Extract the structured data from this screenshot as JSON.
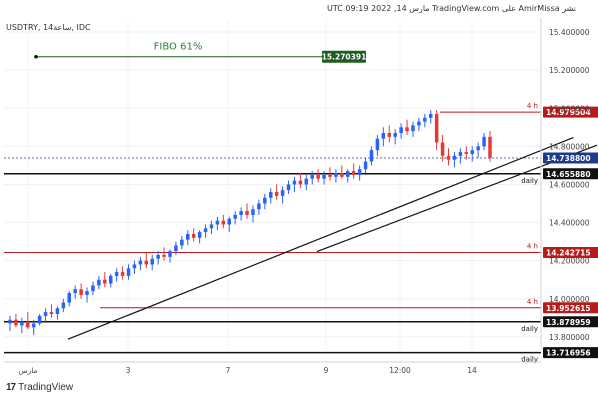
{
  "header": {
    "publish_line": "نشر AmirMissa على TradingView.com مارس 14, 2022 09:19 UTC",
    "symbol_line": "USDTRY, 14ساعة, IDC"
  },
  "footer": {
    "brand": "TradingView",
    "logo_mark": "17"
  },
  "colors": {
    "candle_up": "#2962ff",
    "candle_down": "#e53935",
    "level_red": "#b71c1c",
    "level_black": "#111111",
    "fibo_green": "#1b5e20",
    "fibo_text": "#2e7d32",
    "current_price_tag": "#1e3a8a",
    "axis_text": "#444444"
  },
  "chart_data": {
    "type": "candlestick",
    "symbol": "USDTRY",
    "timeframe": "14ساعة",
    "source": "IDC",
    "price_axis": {
      "range": [
        13.7,
        15.5
      ],
      "ticks": [
        "15.400000",
        "15.200000",
        "15.000000",
        "14.800000",
        "14.600000",
        "14.400000",
        "14.200000",
        "14.000000",
        "13.800000"
      ]
    },
    "time_axis": {
      "ticks": [
        "مارس",
        "3",
        "7",
        "9",
        "12:00",
        "14"
      ]
    },
    "levels": [
      {
        "price": 14.979504,
        "label": "14.979504",
        "tag": "4 h",
        "color": "red"
      },
      {
        "price": 14.65588,
        "label": "14.655880",
        "tag": "daily",
        "color": "black"
      },
      {
        "price": 14.242715,
        "label": "14.242715",
        "tag": "4 h",
        "color": "red"
      },
      {
        "price": 13.952615,
        "label": "13.952615",
        "tag": "4 h",
        "color": "red"
      },
      {
        "price": 13.878959,
        "label": "13.878959",
        "tag": "daily",
        "color": "black"
      },
      {
        "price": 13.716956,
        "label": "13.716956",
        "tag": "daily",
        "color": "black"
      }
    ],
    "current_price": {
      "price": 14.7388,
      "label": "14.738800"
    },
    "fibo": {
      "label": "FIBO 61%",
      "price": 15.270391,
      "price_label": "15.270391"
    },
    "trendlines": [
      {
        "from": {
          "time_index": 0,
          "price": 13.84
        },
        "to": {
          "time_index": 90,
          "price": 14.82
        }
      },
      {
        "from": {
          "time_index": 42,
          "price": 14.3
        },
        "to": {
          "time_index": 94,
          "price": 14.78
        }
      }
    ],
    "candles": [
      {
        "o": 13.87,
        "h": 13.91,
        "l": 13.83,
        "c": 13.89
      },
      {
        "o": 13.89,
        "h": 13.92,
        "l": 13.85,
        "c": 13.86
      },
      {
        "o": 13.86,
        "h": 13.9,
        "l": 13.82,
        "c": 13.88
      },
      {
        "o": 13.88,
        "h": 13.93,
        "l": 13.84,
        "c": 13.85
      },
      {
        "o": 13.85,
        "h": 13.89,
        "l": 13.81,
        "c": 13.87
      },
      {
        "o": 13.87,
        "h": 13.92,
        "l": 13.86,
        "c": 13.91
      },
      {
        "o": 13.91,
        "h": 13.95,
        "l": 13.88,
        "c": 13.93
      },
      {
        "o": 13.93,
        "h": 13.97,
        "l": 13.9,
        "c": 13.92
      },
      {
        "o": 13.92,
        "h": 13.96,
        "l": 13.89,
        "c": 13.95
      },
      {
        "o": 13.95,
        "h": 14.0,
        "l": 13.93,
        "c": 13.98
      },
      {
        "o": 13.98,
        "h": 14.04,
        "l": 13.96,
        "c": 14.03
      },
      {
        "o": 14.03,
        "h": 14.07,
        "l": 14.0,
        "c": 14.05
      },
      {
        "o": 14.05,
        "h": 14.08,
        "l": 14.0,
        "c": 14.02
      },
      {
        "o": 14.02,
        "h": 14.06,
        "l": 13.98,
        "c": 14.04
      },
      {
        "o": 14.04,
        "h": 14.09,
        "l": 14.02,
        "c": 14.07
      },
      {
        "o": 14.07,
        "h": 14.12,
        "l": 14.05,
        "c": 14.1
      },
      {
        "o": 14.1,
        "h": 14.14,
        "l": 14.06,
        "c": 14.08
      },
      {
        "o": 14.08,
        "h": 14.13,
        "l": 14.06,
        "c": 14.12
      },
      {
        "o": 14.12,
        "h": 14.16,
        "l": 14.09,
        "c": 14.14
      },
      {
        "o": 14.14,
        "h": 14.17,
        "l": 14.1,
        "c": 14.12
      },
      {
        "o": 14.12,
        "h": 14.18,
        "l": 14.1,
        "c": 14.16
      },
      {
        "o": 14.16,
        "h": 14.2,
        "l": 14.13,
        "c": 14.18
      },
      {
        "o": 14.18,
        "h": 14.22,
        "l": 14.15,
        "c": 14.2
      },
      {
        "o": 14.2,
        "h": 14.24,
        "l": 14.16,
        "c": 14.18
      },
      {
        "o": 14.18,
        "h": 14.23,
        "l": 14.15,
        "c": 14.21
      },
      {
        "o": 14.21,
        "h": 14.25,
        "l": 14.18,
        "c": 14.23
      },
      {
        "o": 14.23,
        "h": 14.27,
        "l": 14.2,
        "c": 14.22
      },
      {
        "o": 14.22,
        "h": 14.26,
        "l": 14.19,
        "c": 14.25
      },
      {
        "o": 14.25,
        "h": 14.3,
        "l": 14.23,
        "c": 14.28
      },
      {
        "o": 14.28,
        "h": 14.33,
        "l": 14.26,
        "c": 14.31
      },
      {
        "o": 14.31,
        "h": 14.36,
        "l": 14.28,
        "c": 14.34
      },
      {
        "o": 14.34,
        "h": 14.37,
        "l": 14.3,
        "c": 14.32
      },
      {
        "o": 14.32,
        "h": 14.36,
        "l": 14.29,
        "c": 14.35
      },
      {
        "o": 14.35,
        "h": 14.39,
        "l": 14.32,
        "c": 14.37
      },
      {
        "o": 14.37,
        "h": 14.41,
        "l": 14.34,
        "c": 14.39
      },
      {
        "o": 14.39,
        "h": 14.43,
        "l": 14.36,
        "c": 14.41
      },
      {
        "o": 14.41,
        "h": 14.44,
        "l": 14.37,
        "c": 14.39
      },
      {
        "o": 14.39,
        "h": 14.43,
        "l": 14.35,
        "c": 14.42
      },
      {
        "o": 14.42,
        "h": 14.46,
        "l": 14.39,
        "c": 14.44
      },
      {
        "o": 14.44,
        "h": 14.48,
        "l": 14.41,
        "c": 14.46
      },
      {
        "o": 14.46,
        "h": 14.5,
        "l": 14.42,
        "c": 14.44
      },
      {
        "o": 14.44,
        "h": 14.49,
        "l": 14.4,
        "c": 14.47
      },
      {
        "o": 14.47,
        "h": 14.52,
        "l": 14.44,
        "c": 14.5
      },
      {
        "o": 14.5,
        "h": 14.55,
        "l": 14.47,
        "c": 14.53
      },
      {
        "o": 14.53,
        "h": 14.58,
        "l": 14.5,
        "c": 14.56
      },
      {
        "o": 14.56,
        "h": 14.6,
        "l": 14.52,
        "c": 14.54
      },
      {
        "o": 14.54,
        "h": 14.59,
        "l": 14.5,
        "c": 14.57
      },
      {
        "o": 14.57,
        "h": 14.62,
        "l": 14.55,
        "c": 14.6
      },
      {
        "o": 14.6,
        "h": 14.64,
        "l": 14.56,
        "c": 14.62
      },
      {
        "o": 14.62,
        "h": 14.66,
        "l": 14.58,
        "c": 14.6
      },
      {
        "o": 14.6,
        "h": 14.65,
        "l": 14.57,
        "c": 14.63
      },
      {
        "o": 14.63,
        "h": 14.67,
        "l": 14.6,
        "c": 14.65
      },
      {
        "o": 14.65,
        "h": 14.68,
        "l": 14.61,
        "c": 14.63
      },
      {
        "o": 14.63,
        "h": 14.67,
        "l": 14.6,
        "c": 14.65
      },
      {
        "o": 14.65,
        "h": 14.69,
        "l": 14.62,
        "c": 14.64
      },
      {
        "o": 14.64,
        "h": 14.68,
        "l": 14.61,
        "c": 14.66
      },
      {
        "o": 14.66,
        "h": 14.7,
        "l": 14.63,
        "c": 14.64
      },
      {
        "o": 14.64,
        "h": 14.68,
        "l": 14.61,
        "c": 14.67
      },
      {
        "o": 14.67,
        "h": 14.71,
        "l": 14.63,
        "c": 14.65
      },
      {
        "o": 14.65,
        "h": 14.7,
        "l": 14.62,
        "c": 14.68
      },
      {
        "o": 14.68,
        "h": 14.74,
        "l": 14.66,
        "c": 14.72
      },
      {
        "o": 14.72,
        "h": 14.8,
        "l": 14.7,
        "c": 14.78
      },
      {
        "o": 14.78,
        "h": 14.86,
        "l": 14.75,
        "c": 14.84
      },
      {
        "o": 14.84,
        "h": 14.9,
        "l": 14.8,
        "c": 14.87
      },
      {
        "o": 14.87,
        "h": 14.91,
        "l": 14.82,
        "c": 14.85
      },
      {
        "o": 14.85,
        "h": 14.89,
        "l": 14.81,
        "c": 14.87
      },
      {
        "o": 14.87,
        "h": 14.92,
        "l": 14.84,
        "c": 14.9
      },
      {
        "o": 14.9,
        "h": 14.94,
        "l": 14.86,
        "c": 14.88
      },
      {
        "o": 14.88,
        "h": 14.93,
        "l": 14.85,
        "c": 14.91
      },
      {
        "o": 14.91,
        "h": 14.95,
        "l": 14.88,
        "c": 14.93
      },
      {
        "o": 14.93,
        "h": 14.97,
        "l": 14.9,
        "c": 14.95
      },
      {
        "o": 14.95,
        "h": 14.99,
        "l": 14.92,
        "c": 14.97
      },
      {
        "o": 14.97,
        "h": 14.99,
        "l": 14.78,
        "c": 14.82
      },
      {
        "o": 14.82,
        "h": 14.86,
        "l": 14.72,
        "c": 14.75
      },
      {
        "o": 14.75,
        "h": 14.79,
        "l": 14.7,
        "c": 14.73
      },
      {
        "o": 14.73,
        "h": 14.77,
        "l": 14.69,
        "c": 14.75
      },
      {
        "o": 14.75,
        "h": 14.79,
        "l": 14.71,
        "c": 14.77
      },
      {
        "o": 14.77,
        "h": 14.8,
        "l": 14.73,
        "c": 14.76
      },
      {
        "o": 14.76,
        "h": 14.8,
        "l": 14.72,
        "c": 14.78
      },
      {
        "o": 14.78,
        "h": 14.82,
        "l": 14.74,
        "c": 14.8
      },
      {
        "o": 14.8,
        "h": 14.87,
        "l": 14.78,
        "c": 14.85
      },
      {
        "o": 14.85,
        "h": 14.88,
        "l": 14.72,
        "c": 14.74
      }
    ]
  }
}
